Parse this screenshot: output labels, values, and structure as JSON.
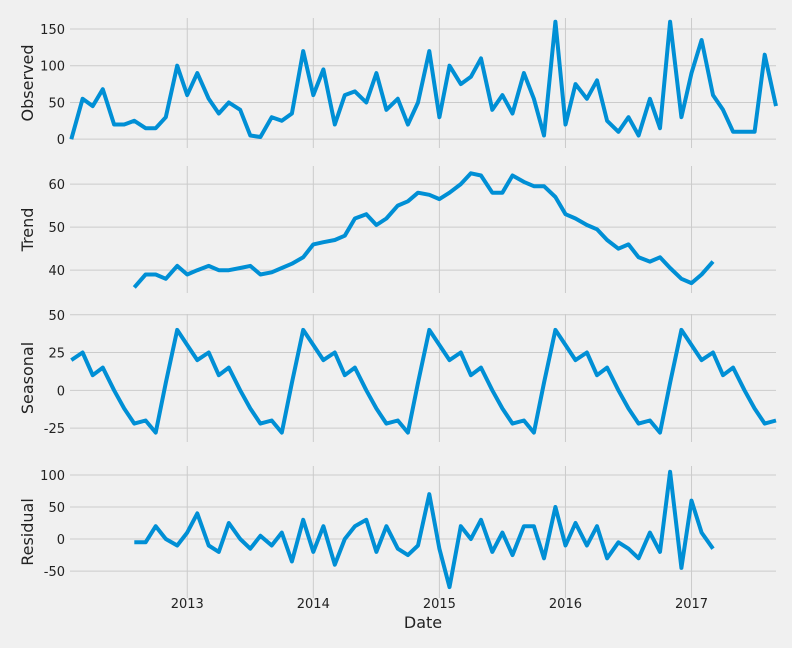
{
  "chart_data": {
    "type": "line",
    "xlabel": "Date",
    "color": "#008fd5",
    "grid": true,
    "xlim": [
      2012.07,
      2017.67
    ],
    "xticks": [
      2013,
      2014,
      2015,
      2016,
      2017
    ],
    "x": [
      2012.08,
      2012.17,
      2012.25,
      2012.33,
      2012.42,
      2012.5,
      2012.58,
      2012.67,
      2012.75,
      2012.83,
      2012.92,
      2013.0,
      2013.08,
      2013.17,
      2013.25,
      2013.33,
      2013.42,
      2013.5,
      2013.58,
      2013.67,
      2013.75,
      2013.83,
      2013.92,
      2014.0,
      2014.08,
      2014.17,
      2014.25,
      2014.33,
      2014.42,
      2014.5,
      2014.58,
      2014.67,
      2014.75,
      2014.83,
      2014.92,
      2015.0,
      2015.08,
      2015.17,
      2015.25,
      2015.33,
      2015.42,
      2015.5,
      2015.58,
      2015.67,
      2015.75,
      2015.83,
      2015.92,
      2016.0,
      2016.08,
      2016.17,
      2016.25,
      2016.33,
      2016.42,
      2016.5,
      2016.58,
      2016.67,
      2016.75,
      2016.83,
      2016.92,
      2017.0,
      2017.08,
      2017.17,
      2017.25,
      2017.33,
      2017.42,
      2017.5,
      2017.58,
      2017.67
    ],
    "series": [
      {
        "name": "Observed",
        "ylim": [
          -12,
          165
        ],
        "yticks": [
          0,
          50,
          100,
          150
        ],
        "values": [
          0,
          55,
          45,
          68,
          20,
          20,
          25,
          15,
          15,
          30,
          100,
          60,
          90,
          55,
          35,
          50,
          40,
          5,
          3,
          30,
          25,
          35,
          120,
          60,
          95,
          20,
          60,
          65,
          50,
          90,
          40,
          55,
          20,
          50,
          120,
          30,
          100,
          75,
          85,
          110,
          40,
          60,
          35,
          90,
          55,
          5,
          160,
          20,
          75,
          55,
          80,
          25,
          10,
          30,
          5,
          55,
          15,
          160,
          30,
          90,
          135,
          60,
          40,
          10,
          10,
          10,
          115,
          45
        ]
      },
      {
        "name": "Trend",
        "ylim": [
          34.7,
          64.2
        ],
        "yticks": [
          40,
          50,
          60
        ],
        "values": [
          null,
          null,
          null,
          null,
          null,
          null,
          36,
          39,
          39,
          38,
          41,
          39,
          40,
          41,
          40,
          40,
          40.5,
          41,
          39,
          39.5,
          40.5,
          41.5,
          43,
          46,
          46.5,
          47,
          48,
          52,
          53,
          50.5,
          52,
          55,
          56,
          58,
          57.5,
          56.5,
          58,
          60,
          62.5,
          62,
          58,
          58,
          62,
          60.5,
          59.5,
          59.5,
          57,
          53,
          52,
          50.5,
          49.5,
          47,
          45,
          46,
          43,
          42,
          43,
          40.5,
          38,
          37,
          39,
          42,
          null,
          null,
          null,
          null,
          null,
          null
        ]
      },
      {
        "name": "Seasonal",
        "ylim": [
          -34.2,
          50.5
        ],
        "yticks": [
          -25,
          0,
          25,
          50
        ],
        "values": [
          20,
          25,
          10,
          15,
          0,
          -12,
          -22,
          -20,
          -28,
          5,
          40,
          30,
          20,
          25,
          10,
          15,
          0,
          -12,
          -22,
          -20,
          -28,
          5,
          40,
          30,
          20,
          25,
          10,
          15,
          0,
          -12,
          -22,
          -20,
          -28,
          5,
          40,
          30,
          20,
          25,
          10,
          15,
          0,
          -12,
          -22,
          -20,
          -28,
          5,
          40,
          30,
          20,
          25,
          10,
          15,
          0,
          -12,
          -22,
          -20,
          -28,
          5,
          40,
          30,
          20,
          25,
          10,
          15,
          0,
          -12,
          -22,
          -20
        ]
      },
      {
        "name": "Residual",
        "ylim": [
          -92,
          114
        ],
        "yticks": [
          -50,
          0,
          50,
          100
        ],
        "values": [
          null,
          null,
          null,
          null,
          null,
          null,
          -5,
          -5,
          20,
          0,
          -10,
          10,
          40,
          -10,
          -20,
          25,
          0,
          -15,
          5,
          -10,
          10,
          -35,
          30,
          -20,
          20,
          -40,
          0,
          20,
          30,
          -20,
          20,
          -15,
          -25,
          -10,
          70,
          -15,
          -75,
          20,
          0,
          30,
          -20,
          10,
          -25,
          20,
          20,
          -30,
          50,
          -10,
          25,
          -10,
          20,
          -30,
          -5,
          -15,
          -30,
          10,
          -20,
          105,
          -45,
          60,
          10,
          -15,
          null,
          null,
          null,
          null,
          null,
          null
        ]
      }
    ]
  }
}
